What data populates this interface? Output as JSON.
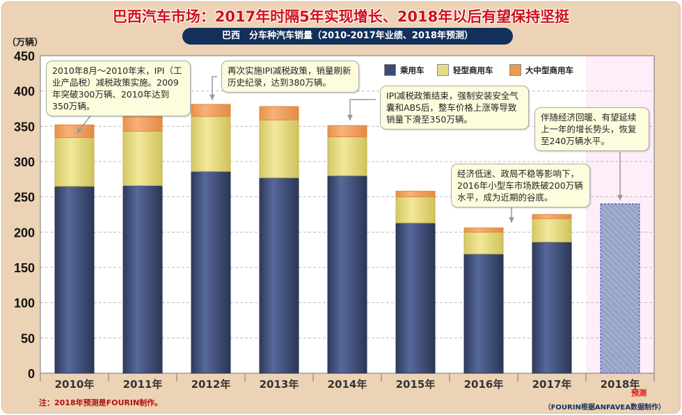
{
  "title": "巴西汽车市场：2017年时隔5年实现增长、2018年以后有望保持坚挺",
  "subtitle": "巴西　分车种汽车销量（2010-2017年业绩、2018年预测）",
  "note": "注：2018年预测是FOURIN制作。",
  "source": "（FOURIN根据ANFAVEA数据制作）",
  "chart_data": {
    "type": "bar",
    "stacked": true,
    "ylabel": "（万辆）",
    "ylim": [
      0,
      450
    ],
    "yticks": [
      0,
      50,
      100,
      150,
      200,
      250,
      300,
      350,
      400,
      450
    ],
    "grid": true,
    "legend_placement": "top-right",
    "categories": [
      "2010年",
      "2011年",
      "2012年",
      "2013年",
      "2014年",
      "2015年",
      "2016年",
      "2017年",
      "2018年"
    ],
    "forecast_label": "预测",
    "series": [
      {
        "name": "乘用车",
        "color": "#3d4a72",
        "values": [
          265,
          266,
          286,
          277,
          280,
          213,
          169,
          186,
          null
        ]
      },
      {
        "name": "轻型商用车",
        "color": "#e6dc86",
        "values": [
          69,
          77,
          78,
          82,
          55,
          37,
          31,
          33,
          null
        ]
      },
      {
        "name": "大中型商用车",
        "color": "#ec9a52",
        "values": [
          18,
          21,
          17,
          19,
          16,
          8,
          6,
          6,
          null
        ]
      }
    ],
    "forecast_total": {
      "category": "2018年",
      "value": 240,
      "color": "#97a3c4"
    },
    "annotations": [
      {
        "text": "2010年8月～2010年末，IPI（工业产品税）减税政策实施。2009年突破300万辆、2010年达到350万辆。",
        "target": "2010年"
      },
      {
        "text": "再次实施IPI减税政策，销量刷新历史纪录，达到380万辆。",
        "target": "2012年"
      },
      {
        "text": "IPI减税政策结束，强制安装安全气囊和ABS后，整车价格上涨等导致销量下滑至350万辆。",
        "target": "2014年"
      },
      {
        "text": "经济低迷、政局不稳等影响下，2016年小型车市场跌破200万辆水平，成为近期的谷底。",
        "target": "2016年"
      },
      {
        "text": "伴随经济回暖、有望延续上一年的增长势头，恢复至240万辆水平。",
        "target": "2018年"
      }
    ]
  }
}
